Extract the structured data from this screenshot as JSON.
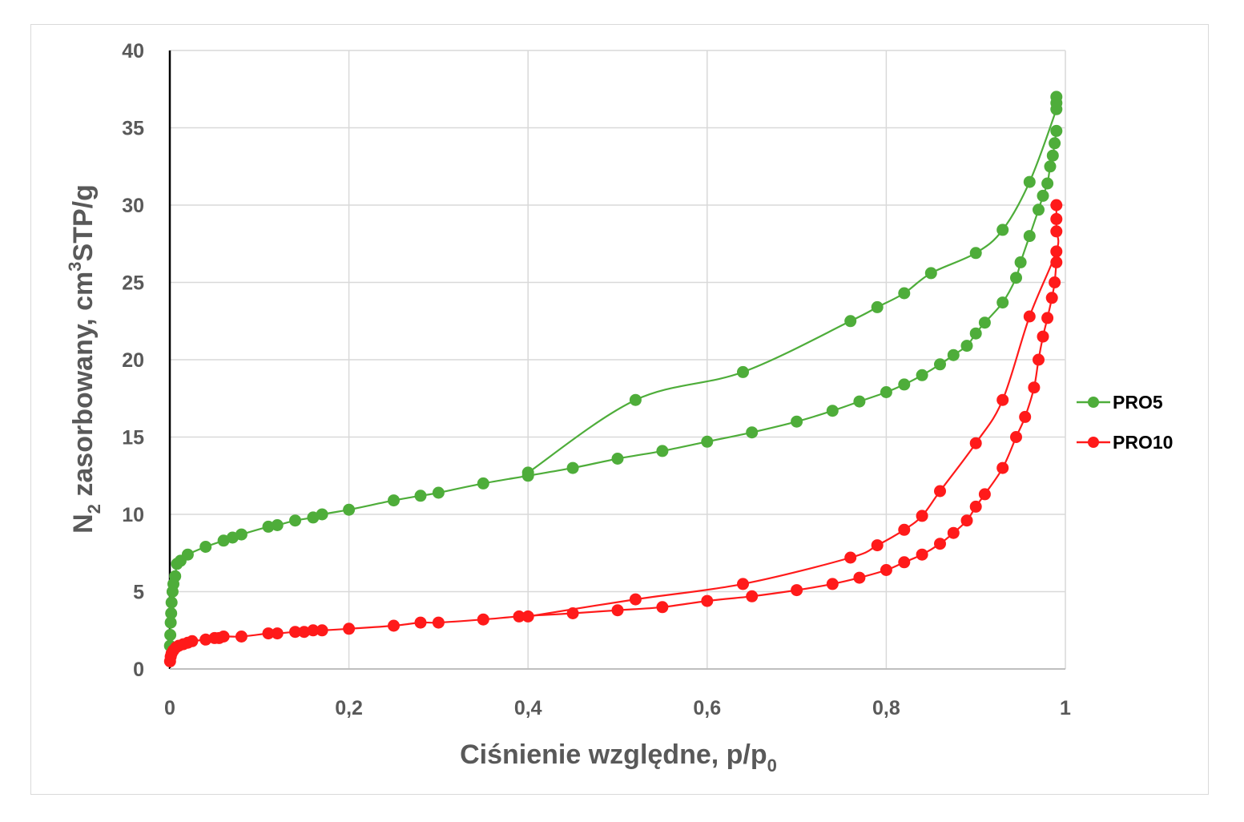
{
  "chart_data": {
    "type": "scatter",
    "xlabel": "Ciśnienie względne, p/p",
    "xlabel_sub": "0",
    "ylabel_pre": "N",
    "ylabel_sub": "2",
    "ylabel_mid": " zasorbowany, cm",
    "ylabel_sup": "3",
    "ylabel_post": "STP/g",
    "xlim": [
      0,
      1
    ],
    "ylim": [
      0,
      40
    ],
    "xticks": [
      0,
      0.2,
      0.4,
      0.6,
      0.8,
      1
    ],
    "xtick_labels": [
      "0",
      "0,2",
      "0,4",
      "0,6",
      "0,8",
      "1"
    ],
    "yticks": [
      0,
      5,
      10,
      15,
      20,
      25,
      30,
      35,
      40
    ],
    "ytick_labels": [
      "0",
      "5",
      "10",
      "15",
      "20",
      "25",
      "30",
      "35",
      "40"
    ],
    "grid": true,
    "legend_position": "right",
    "series": [
      {
        "name": "PRO5",
        "color": "#4ead3a",
        "adsorption": {
          "x": [
            0.0002,
            0.0005,
            0.001,
            0.0015,
            0.002,
            0.003,
            0.004,
            0.006,
            0.008,
            0.012,
            0.02,
            0.04,
            0.06,
            0.07,
            0.08,
            0.11,
            0.12,
            0.14,
            0.16,
            0.17,
            0.2,
            0.25,
            0.28,
            0.3,
            0.35,
            0.4,
            0.45,
            0.5,
            0.55,
            0.6,
            0.65,
            0.7,
            0.74,
            0.77,
            0.8,
            0.82,
            0.84,
            0.86,
            0.875,
            0.89,
            0.9,
            0.91,
            0.93,
            0.945,
            0.95,
            0.96,
            0.97,
            0.975,
            0.98,
            0.983,
            0.986,
            0.988,
            0.99
          ],
          "y": [
            1.5,
            2.2,
            3.0,
            3.6,
            4.3,
            5.0,
            5.5,
            6.0,
            6.8,
            7.0,
            7.4,
            7.9,
            8.3,
            8.5,
            8.7,
            9.2,
            9.3,
            9.6,
            9.8,
            10.0,
            10.3,
            10.9,
            11.2,
            11.4,
            12.0,
            12.5,
            13.0,
            13.6,
            14.1,
            14.7,
            15.3,
            16.0,
            16.7,
            17.3,
            17.9,
            18.4,
            19.0,
            19.7,
            20.3,
            20.9,
            21.7,
            22.4,
            23.7,
            25.3,
            26.3,
            28.0,
            29.7,
            30.6,
            31.4,
            32.5,
            33.2,
            34.0,
            34.8
          ]
        },
        "desorption": {
          "x": [
            0.99,
            0.99,
            0.99,
            0.96,
            0.93,
            0.9,
            0.85,
            0.82,
            0.79,
            0.76,
            0.64,
            0.52,
            0.4
          ],
          "y": [
            37.0,
            36.6,
            36.2,
            31.5,
            28.4,
            26.9,
            25.6,
            24.3,
            23.4,
            22.5,
            19.2,
            17.4,
            12.7
          ]
        }
      },
      {
        "name": "PRO10",
        "color": "#ff1a1a",
        "adsorption": {
          "x": [
            0.0003,
            0.001,
            0.002,
            0.004,
            0.007,
            0.01,
            0.015,
            0.02,
            0.025,
            0.04,
            0.05,
            0.055,
            0.06,
            0.08,
            0.11,
            0.12,
            0.14,
            0.15,
            0.16,
            0.17,
            0.2,
            0.25,
            0.28,
            0.3,
            0.35,
            0.39,
            0.45,
            0.5,
            0.55,
            0.6,
            0.65,
            0.7,
            0.74,
            0.77,
            0.8,
            0.82,
            0.84,
            0.86,
            0.875,
            0.89,
            0.9,
            0.91,
            0.93,
            0.945,
            0.955,
            0.965,
            0.97,
            0.975,
            0.98,
            0.985,
            0.988,
            0.99
          ],
          "y": [
            0.5,
            0.8,
            1.0,
            1.2,
            1.4,
            1.5,
            1.6,
            1.7,
            1.8,
            1.9,
            2.0,
            2.0,
            2.1,
            2.1,
            2.3,
            2.3,
            2.4,
            2.4,
            2.5,
            2.5,
            2.6,
            2.8,
            3.0,
            3.0,
            3.2,
            3.4,
            3.6,
            3.8,
            4.0,
            4.4,
            4.7,
            5.1,
            5.5,
            5.9,
            6.4,
            6.9,
            7.4,
            8.1,
            8.8,
            9.6,
            10.5,
            11.3,
            13.0,
            15.0,
            16.3,
            18.2,
            20.0,
            21.5,
            22.7,
            24.0,
            25.0,
            26.3
          ]
        },
        "desorption": {
          "x": [
            0.99,
            0.99,
            0.99,
            0.99,
            0.96,
            0.93,
            0.9,
            0.86,
            0.84,
            0.82,
            0.79,
            0.76,
            0.64,
            0.52,
            0.4
          ],
          "y": [
            30.0,
            29.1,
            28.3,
            27.0,
            22.8,
            17.4,
            14.6,
            11.5,
            9.9,
            9.0,
            8.0,
            7.2,
            5.5,
            4.5,
            3.4
          ]
        }
      }
    ]
  }
}
